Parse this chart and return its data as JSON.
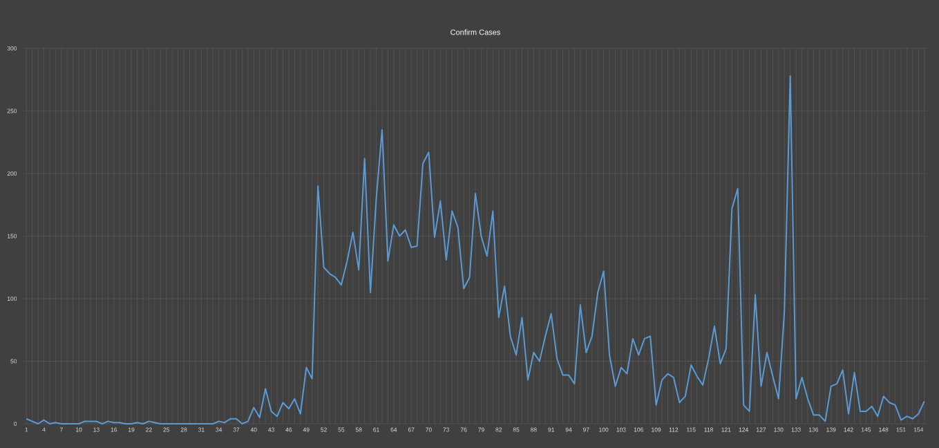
{
  "chart_data": {
    "type": "line",
    "title": "Confirm Cases",
    "categories": [
      "1",
      null,
      null,
      "4",
      null,
      null,
      "7",
      null,
      null,
      "10",
      null,
      null,
      "13",
      null,
      null,
      "16",
      null,
      null,
      "19",
      null,
      null,
      "22",
      null,
      null,
      "25",
      null,
      null,
      "28",
      null,
      null,
      "31",
      null,
      null,
      "34",
      null,
      null,
      "37",
      null,
      null,
      "40",
      null,
      null,
      "43",
      null,
      null,
      "46",
      null,
      null,
      "49",
      null,
      null,
      "52",
      null,
      null,
      "55",
      null,
      null,
      "58",
      null,
      null,
      "61",
      null,
      null,
      "64",
      null,
      null,
      "67",
      null,
      null,
      "70",
      null,
      null,
      "73",
      null,
      null,
      "76",
      null,
      null,
      "79",
      null,
      null,
      "82",
      null,
      null,
      "85",
      null,
      null,
      "88",
      null,
      null,
      "91",
      null,
      null,
      "94",
      null,
      null,
      "97",
      null,
      null,
      "100",
      null,
      null,
      "103",
      null,
      null,
      "106",
      null,
      null,
      "109",
      null,
      null,
      "112",
      null,
      null,
      "115",
      null,
      null,
      "118",
      null,
      null,
      "121",
      null,
      null,
      "124",
      null,
      null,
      "127",
      null,
      null,
      "130",
      null,
      null,
      "133",
      null,
      null,
      "136",
      null,
      null,
      "139",
      null,
      null,
      "142",
      null,
      null,
      "145",
      null,
      null,
      "148",
      null,
      null,
      "151",
      null,
      null,
      "154",
      null
    ],
    "values": [
      4,
      2,
      0,
      3,
      0,
      1,
      0,
      0,
      0,
      0,
      2,
      2,
      2,
      0,
      2,
      1,
      1,
      0,
      0,
      1,
      0,
      2,
      1,
      0,
      0,
      0,
      0,
      0,
      0,
      0,
      0,
      0,
      0,
      2,
      1,
      4,
      4,
      0,
      2,
      13,
      5,
      28,
      10,
      6,
      17,
      12,
      20,
      8,
      45,
      36,
      190,
      125,
      120,
      117,
      111,
      130,
      153,
      123,
      212,
      105,
      180,
      235,
      130,
      159,
      150,
      155,
      141,
      142,
      208,
      217,
      149,
      178,
      131,
      170,
      157,
      108,
      117,
      184,
      150,
      134,
      170,
      85,
      110,
      70,
      55,
      85,
      35,
      57,
      50,
      70,
      88,
      52,
      39,
      39,
      32,
      95,
      57,
      70,
      105,
      122,
      55,
      30,
      45,
      40,
      68,
      55,
      68,
      70,
      15,
      35,
      40,
      37,
      17,
      22,
      47,
      38,
      31,
      52,
      78,
      48,
      60,
      172,
      188,
      15,
      10,
      103,
      30,
      57,
      38,
      20,
      90,
      278,
      20,
      37,
      20,
      7,
      7,
      2,
      30,
      32,
      43,
      8,
      41,
      10,
      10,
      14,
      6,
      22,
      17,
      15,
      3,
      6,
      4,
      8,
      18
    ],
    "color": "#5b9bd5",
    "ylim": [
      0,
      300
    ],
    "yticks": [
      0,
      50,
      100,
      150,
      200,
      250,
      300
    ],
    "grid": true
  }
}
